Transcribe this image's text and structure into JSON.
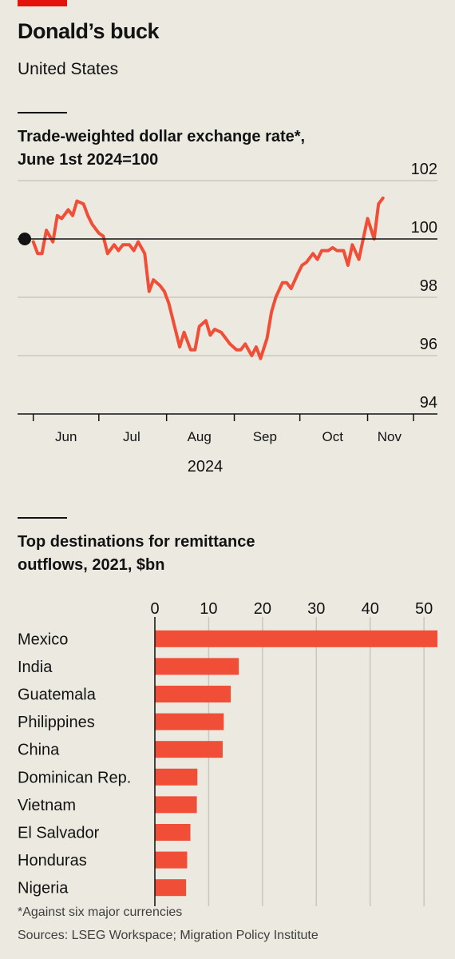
{
  "header": {
    "title": "Donald’s buck",
    "subtitle": "United States"
  },
  "chart1": {
    "title_line1": "Trade-weighted dollar exchange rate*,",
    "title_line2": "June 1st 2024=100"
  },
  "chart2": {
    "title_line1": "Top destinations for remittance",
    "title_line2": "outflows, 2021, $bn"
  },
  "footer": {
    "footnote": "*Against six major currencies",
    "sources": "Sources: LSEG Workspace; Migration Policy Institute"
  },
  "colors": {
    "series": "#f04e37",
    "accent": "#e3120b",
    "grid": "#c9c7bf",
    "axis": "#121212"
  },
  "chart_data": [
    {
      "type": "line",
      "title": "Trade-weighted dollar exchange rate*, June 1st 2024=100",
      "xlabel": "2024",
      "ylabel": "",
      "ylim": [
        94,
        102
      ],
      "yticks": [
        94,
        96,
        98,
        100,
        102
      ],
      "xticks": [
        "Jun",
        "Jul",
        "Aug",
        "Sep",
        "Oct",
        "Nov"
      ],
      "baseline": 100,
      "grid": true,
      "series": [
        {
          "x": [
            "2024-06-01",
            "2024-06-03",
            "2024-06-05",
            "2024-06-07",
            "2024-06-10",
            "2024-06-12",
            "2024-06-14",
            "2024-06-17",
            "2024-06-19",
            "2024-06-21",
            "2024-06-24",
            "2024-06-26",
            "2024-06-28",
            "2024-07-01",
            "2024-07-03",
            "2024-07-05",
            "2024-07-08",
            "2024-07-10",
            "2024-07-12",
            "2024-07-15",
            "2024-07-17",
            "2024-07-19",
            "2024-07-22",
            "2024-07-24",
            "2024-07-26",
            "2024-07-29",
            "2024-07-31",
            "2024-08-02",
            "2024-08-05",
            "2024-08-07",
            "2024-08-09",
            "2024-08-12",
            "2024-08-14",
            "2024-08-16",
            "2024-08-19",
            "2024-08-21",
            "2024-08-23",
            "2024-08-26",
            "2024-08-28",
            "2024-08-30",
            "2024-09-02",
            "2024-09-04",
            "2024-09-06",
            "2024-09-09",
            "2024-09-11",
            "2024-09-13",
            "2024-09-16",
            "2024-09-18",
            "2024-09-20",
            "2024-09-23",
            "2024-09-25",
            "2024-09-27",
            "2024-09-30",
            "2024-10-02",
            "2024-10-04",
            "2024-10-07",
            "2024-10-09",
            "2024-10-11",
            "2024-10-14",
            "2024-10-16",
            "2024-10-18",
            "2024-10-21",
            "2024-10-23",
            "2024-10-25",
            "2024-10-28",
            "2024-10-30",
            "2024-11-01",
            "2024-11-04",
            "2024-11-06",
            "2024-11-08"
          ],
          "y": [
            99.9,
            99.5,
            99.5,
            100.3,
            99.9,
            100.8,
            100.7,
            101.0,
            100.8,
            101.3,
            101.2,
            100.8,
            100.5,
            100.2,
            100.1,
            99.5,
            99.8,
            99.6,
            99.8,
            99.8,
            99.6,
            99.9,
            99.5,
            98.2,
            98.6,
            98.4,
            98.2,
            97.8,
            96.9,
            96.3,
            96.8,
            96.2,
            96.2,
            97.0,
            97.2,
            96.7,
            96.9,
            96.8,
            96.6,
            96.4,
            96.2,
            96.2,
            96.4,
            96.0,
            96.3,
            95.9,
            96.6,
            97.5,
            98.0,
            98.5,
            98.5,
            98.3,
            98.8,
            99.1,
            99.2,
            99.5,
            99.3,
            99.6,
            99.6,
            99.7,
            99.6,
            99.6,
            99.1,
            99.8,
            99.3,
            100.0,
            100.7,
            100.0,
            101.2,
            101.4
          ]
        }
      ]
    },
    {
      "type": "bar",
      "orientation": "horizontal",
      "title": "Top destinations for remittance outflows, 2021, $bn",
      "categories": [
        "Mexico",
        "India",
        "Guatemala",
        "Philippines",
        "China",
        "Dominican Rep.",
        "Vietnam",
        "El Salvador",
        "Honduras",
        "Nigeria"
      ],
      "values": [
        52.5,
        15.6,
        14.1,
        12.8,
        12.6,
        7.9,
        7.8,
        6.6,
        6.0,
        5.8
      ],
      "xlim": [
        0,
        52.5
      ],
      "xticks": [
        0,
        10,
        20,
        30,
        40,
        50
      ],
      "grid": true
    }
  ]
}
